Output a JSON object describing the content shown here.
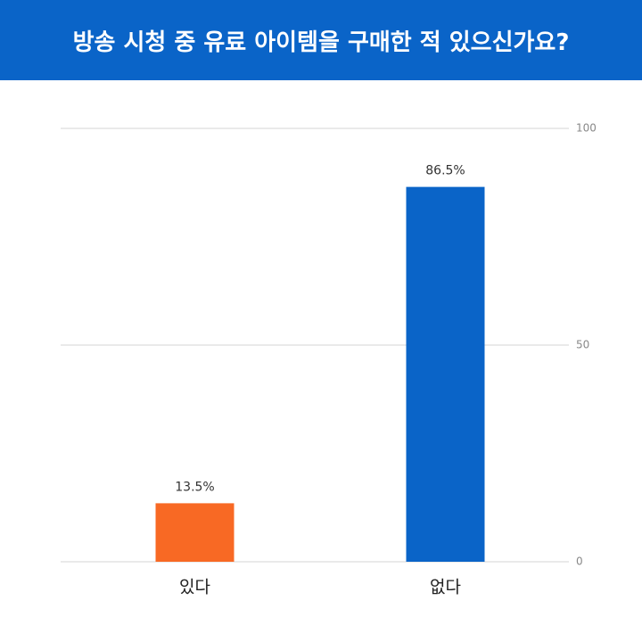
{
  "chart_data": {
    "type": "bar",
    "title": "방송 시청 중 유료 아이템을 구매한 적 있으신가요?",
    "categories": [
      "있다",
      "없다"
    ],
    "values": [
      13.5,
      86.5
    ],
    "value_labels": [
      "13.5%",
      "86.5%"
    ],
    "colors": [
      "#f86924",
      "#0a64c8"
    ],
    "ylim": [
      0,
      100
    ],
    "yticks": [
      0,
      50,
      100
    ],
    "grid": true
  }
}
